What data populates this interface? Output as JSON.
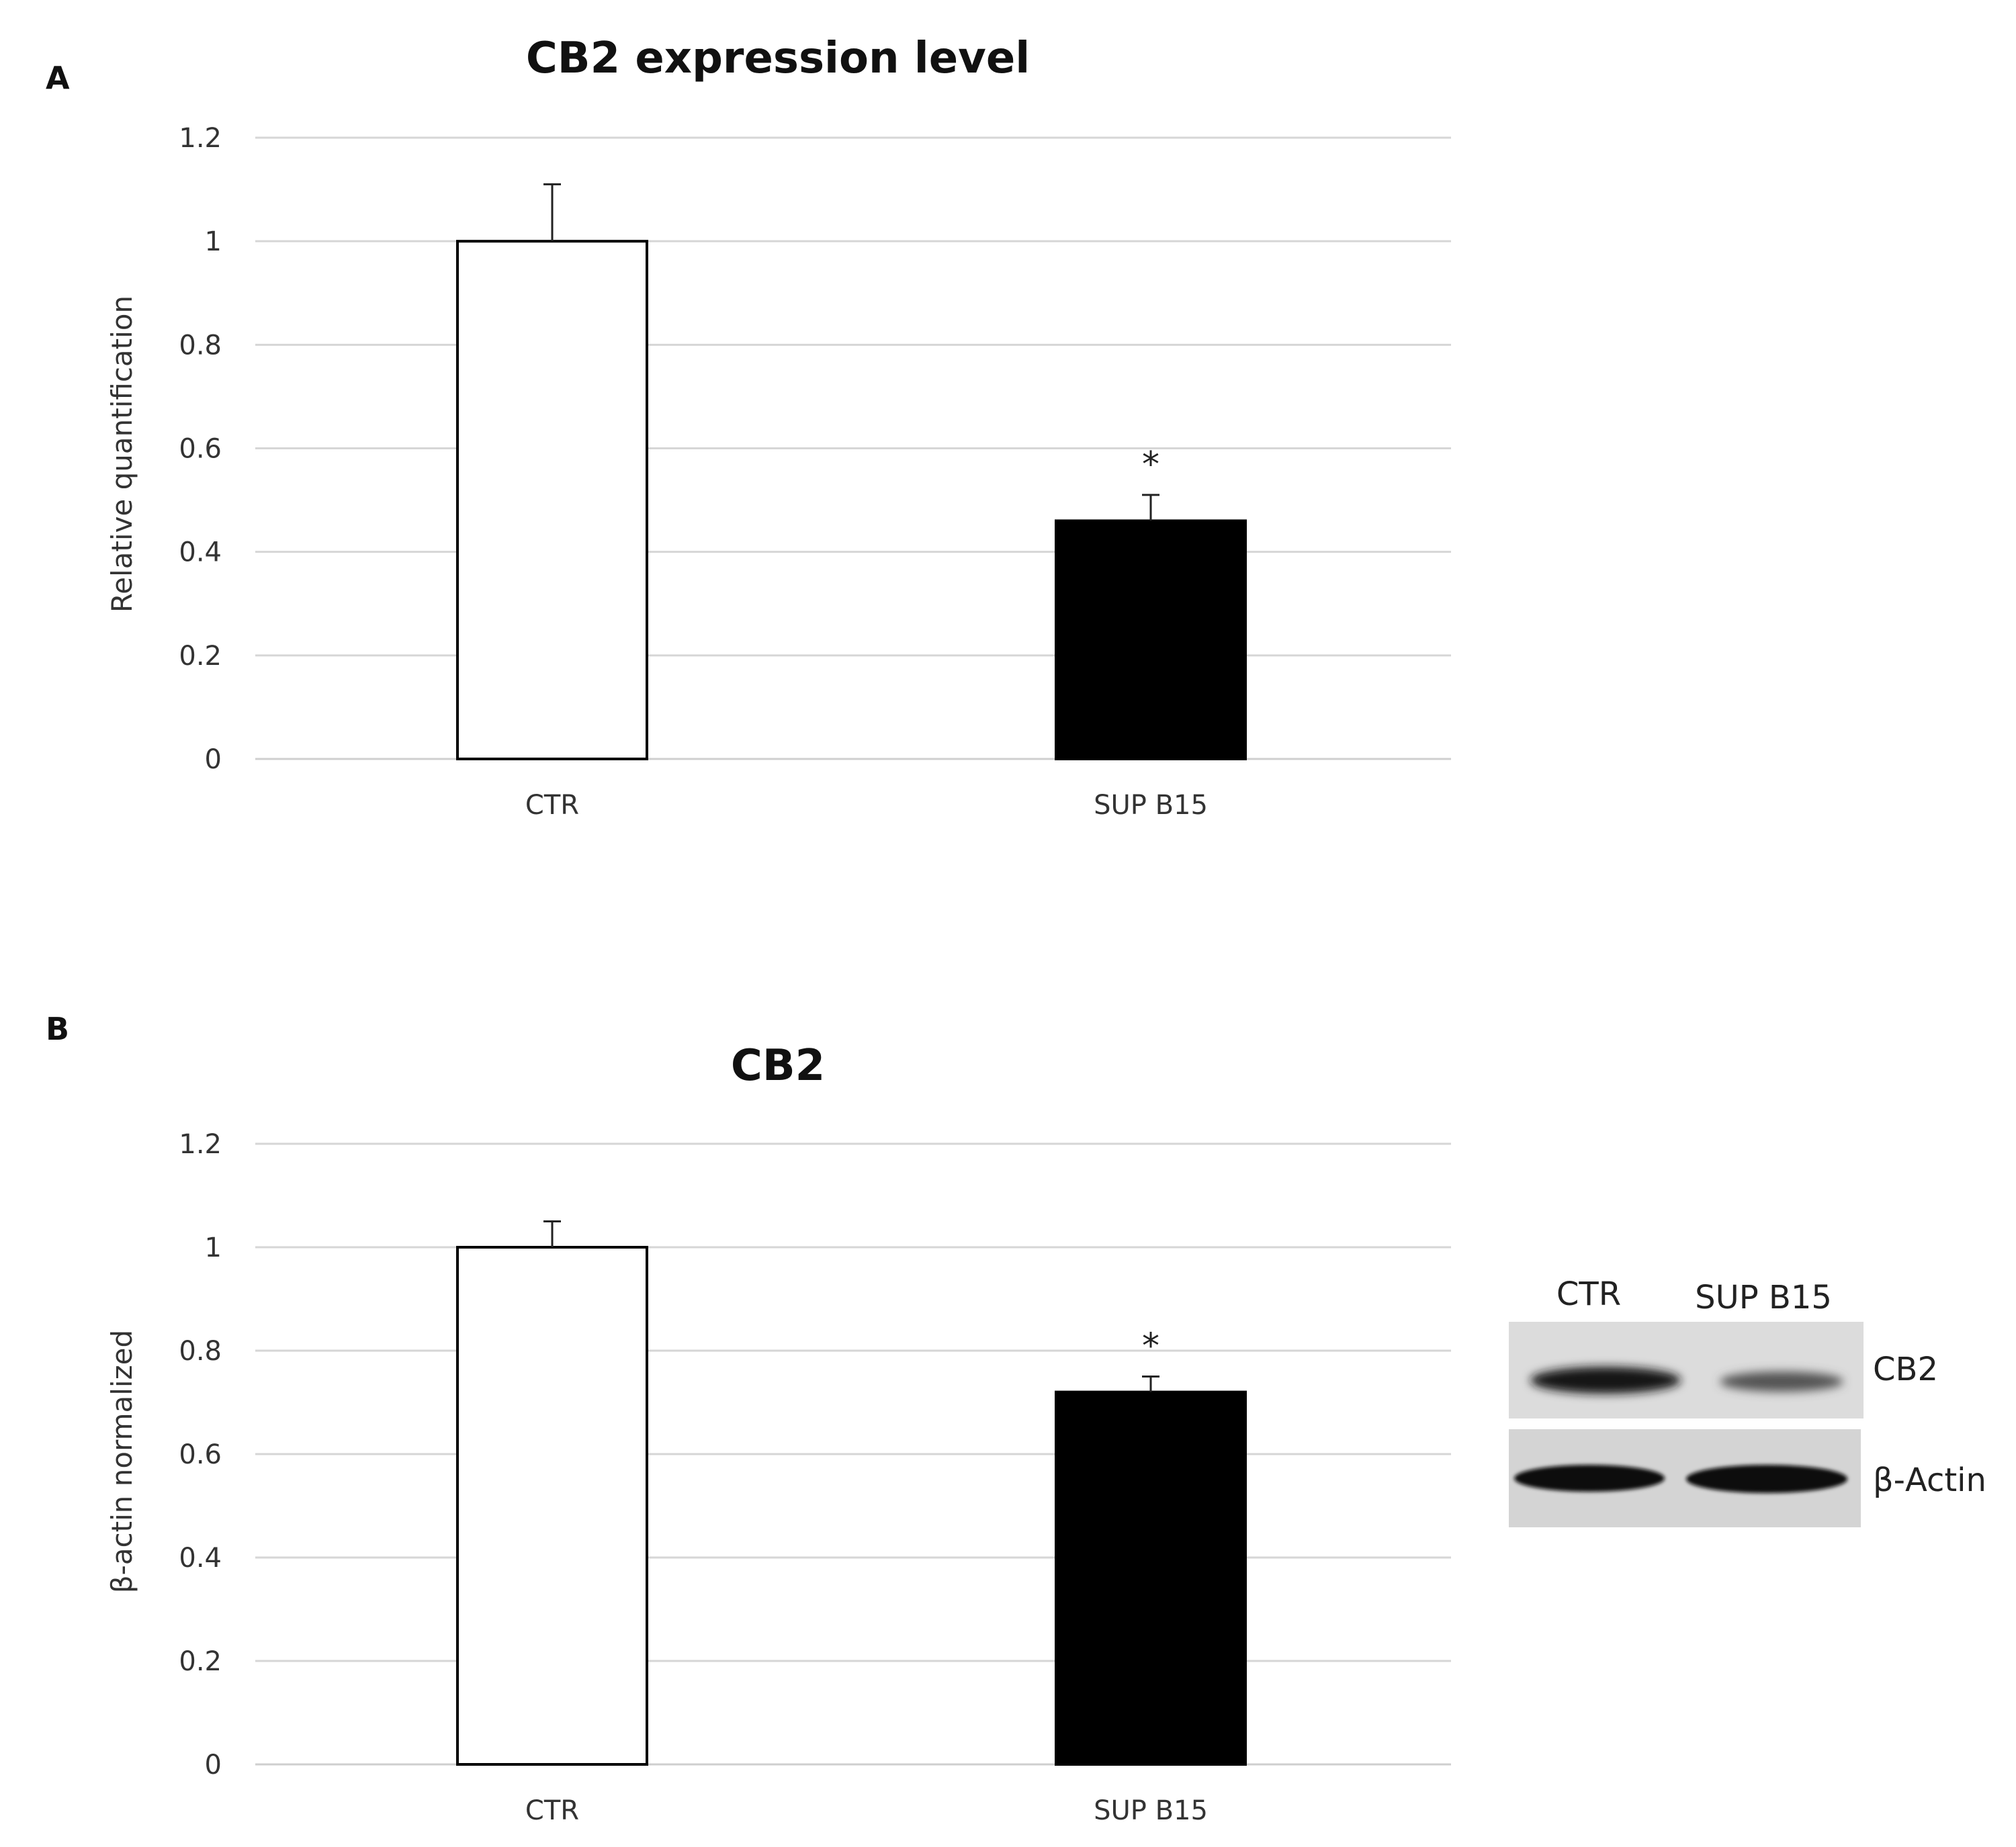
{
  "panels": [
    {
      "letter": "A",
      "chart_data": {
        "type": "bar",
        "title": "CB2 expression level",
        "xlabel": "",
        "ylabel": "Relative quantification",
        "categories": [
          "CTR",
          "SUP B15"
        ],
        "values": [
          1.0,
          0.46
        ],
        "errors": [
          0.11,
          0.05
        ],
        "bar_colors": [
          "#ffffff",
          "#000000"
        ],
        "significance": [
          "",
          "*"
        ],
        "ylim": [
          0,
          1.2
        ],
        "yticks": [
          0,
          0.2,
          0.4,
          0.6,
          0.8,
          1,
          1.2
        ],
        "ytick_labels": [
          "0",
          "0.2",
          "0.4",
          "0.6",
          "0.8",
          "1",
          "1.2"
        ],
        "grid": true
      }
    },
    {
      "letter": "B",
      "chart_data": {
        "type": "bar",
        "title": "CB2",
        "xlabel": "",
        "ylabel": "β-actin normalized",
        "categories": [
          "CTR",
          "SUP B15"
        ],
        "values": [
          1.0,
          0.72
        ],
        "errors": [
          0.05,
          0.03
        ],
        "bar_colors": [
          "#ffffff",
          "#000000"
        ],
        "significance": [
          "",
          "*"
        ],
        "ylim": [
          0,
          1.2
        ],
        "yticks": [
          0,
          0.2,
          0.4,
          0.6,
          0.8,
          1,
          1.2
        ],
        "ytick_labels": [
          "0",
          "0.2",
          "0.4",
          "0.6",
          "0.8",
          "1",
          "1.2"
        ],
        "grid": true
      }
    }
  ],
  "blot": {
    "lane_labels": [
      "CTR",
      "SUP B15"
    ],
    "band_labels": [
      "CB2",
      "β-Actin"
    ],
    "relative_intensity": {
      "CB2": [
        1.0,
        0.6
      ],
      "β-Actin": [
        1.0,
        1.0
      ]
    }
  }
}
